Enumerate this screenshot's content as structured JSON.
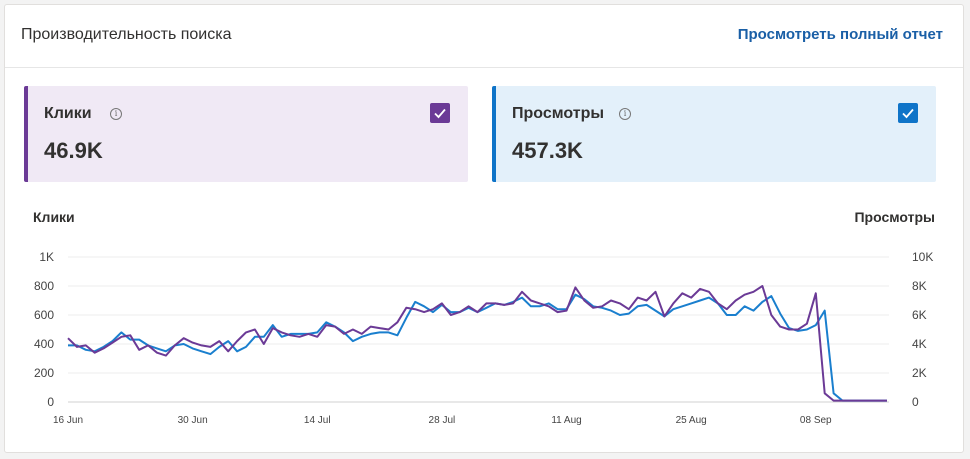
{
  "header": {
    "title": "Производительность поиска",
    "report_link": "Просмотреть полный отчет"
  },
  "metrics": [
    {
      "label": "Клики",
      "value": "46.9K",
      "color": "#6b3a96",
      "checked": true
    },
    {
      "label": "Просмотры",
      "value": "457.3K",
      "color": "#0f74c8",
      "checked": true
    }
  ],
  "chart_data": {
    "type": "line",
    "left_axis_title": "Клики",
    "right_axis_title": "Просмотры",
    "left_ticks": [
      "0",
      "200",
      "400",
      "600",
      "800",
      "1K"
    ],
    "right_ticks": [
      "0",
      "2K",
      "4K",
      "6K",
      "8K",
      "10K"
    ],
    "x_ticks": [
      "16 Jun",
      "30 Jun",
      "14 Jul",
      "28 Jul",
      "11 Aug",
      "25 Aug",
      "08 Sep"
    ],
    "x_tick_index": [
      0,
      14,
      28,
      42,
      56,
      70,
      84
    ],
    "ylim_left": [
      0,
      1000
    ],
    "ylim_right": [
      0,
      10000
    ],
    "grid": true,
    "series": [
      {
        "name": "Клики",
        "axis": "left",
        "color": "#6b3a96",
        "values": [
          440,
          380,
          390,
          340,
          370,
          410,
          450,
          460,
          360,
          390,
          340,
          320,
          390,
          440,
          410,
          390,
          380,
          420,
          350,
          420,
          480,
          500,
          400,
          510,
          480,
          460,
          450,
          470,
          450,
          530,
          520,
          470,
          500,
          470,
          520,
          510,
          500,
          550,
          650,
          640,
          620,
          640,
          680,
          600,
          620,
          660,
          620,
          680,
          680,
          670,
          680,
          760,
          700,
          680,
          660,
          620,
          630,
          790,
          700,
          650,
          660,
          700,
          680,
          640,
          720,
          700,
          760,
          590,
          680,
          750,
          720,
          780,
          760,
          680,
          640,
          700,
          740,
          760,
          800,
          600,
          520,
          500,
          500,
          540,
          750,
          60,
          10,
          10,
          10,
          10,
          10,
          10,
          10
        ]
      },
      {
        "name": "Просмотры",
        "axis": "right",
        "color": "#1a7fce",
        "values": [
          3900,
          3900,
          3600,
          3500,
          3800,
          4200,
          4800,
          4300,
          4300,
          3900,
          3700,
          3500,
          3900,
          4000,
          3700,
          3500,
          3300,
          3800,
          4200,
          3500,
          3800,
          4500,
          4500,
          5300,
          4500,
          4700,
          4700,
          4700,
          4800,
          5500,
          5200,
          4800,
          4200,
          4500,
          4700,
          4800,
          4800,
          4600,
          5800,
          6900,
          6600,
          6200,
          6700,
          6200,
          6200,
          6500,
          6200,
          6500,
          6800,
          6700,
          6900,
          7200,
          6600,
          6600,
          6800,
          6400,
          6400,
          7400,
          7100,
          6600,
          6500,
          6300,
          6000,
          6100,
          6600,
          6700,
          6300,
          5900,
          6400,
          6600,
          6800,
          7000,
          7200,
          6800,
          6000,
          6000,
          6600,
          6300,
          6900,
          7300,
          6100,
          5100,
          4900,
          5000,
          5300,
          6300,
          600,
          100,
          100,
          100,
          100,
          100,
          100
        ]
      }
    ]
  }
}
